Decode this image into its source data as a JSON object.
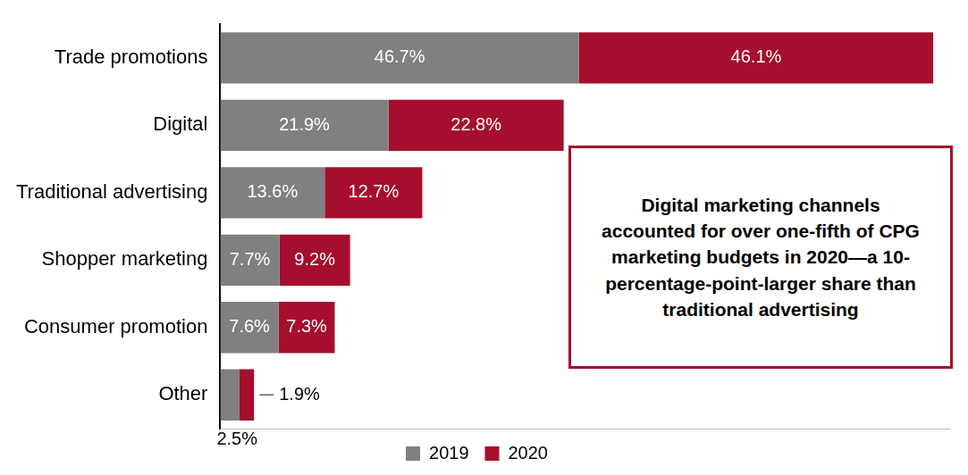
{
  "chart_data": {
    "type": "bar",
    "orientation": "horizontal",
    "stacked": true,
    "categories": [
      "Trade promotions",
      "Digital",
      "Traditional advertising",
      "Shopper marketing",
      "Consumer promotion",
      "Other"
    ],
    "series": [
      {
        "name": "2019",
        "color": "#808080",
        "values": [
          46.7,
          21.9,
          13.6,
          7.7,
          7.6,
          2.5
        ],
        "value_labels": [
          "46.7%",
          "21.9%",
          "13.6%",
          "7.7%",
          "7.6%",
          "2.5%"
        ]
      },
      {
        "name": "2020",
        "color": "#A50F2D",
        "values": [
          46.1,
          22.8,
          12.7,
          9.2,
          7.3,
          1.9
        ],
        "value_labels": [
          "46.1%",
          "22.8%",
          "12.7%",
          "9.2%",
          "7.3%",
          "1.9%"
        ]
      }
    ],
    "xlim": [
      0,
      95
    ],
    "grid": false,
    "legend": "bottom",
    "data_labels": true,
    "tick_labels": "y",
    "annotation": "Digital marketing channels accounted for over one-fifth of CPG marketing budgets in 2020—a 10-percentage-point-larger share than traditional advertising"
  }
}
